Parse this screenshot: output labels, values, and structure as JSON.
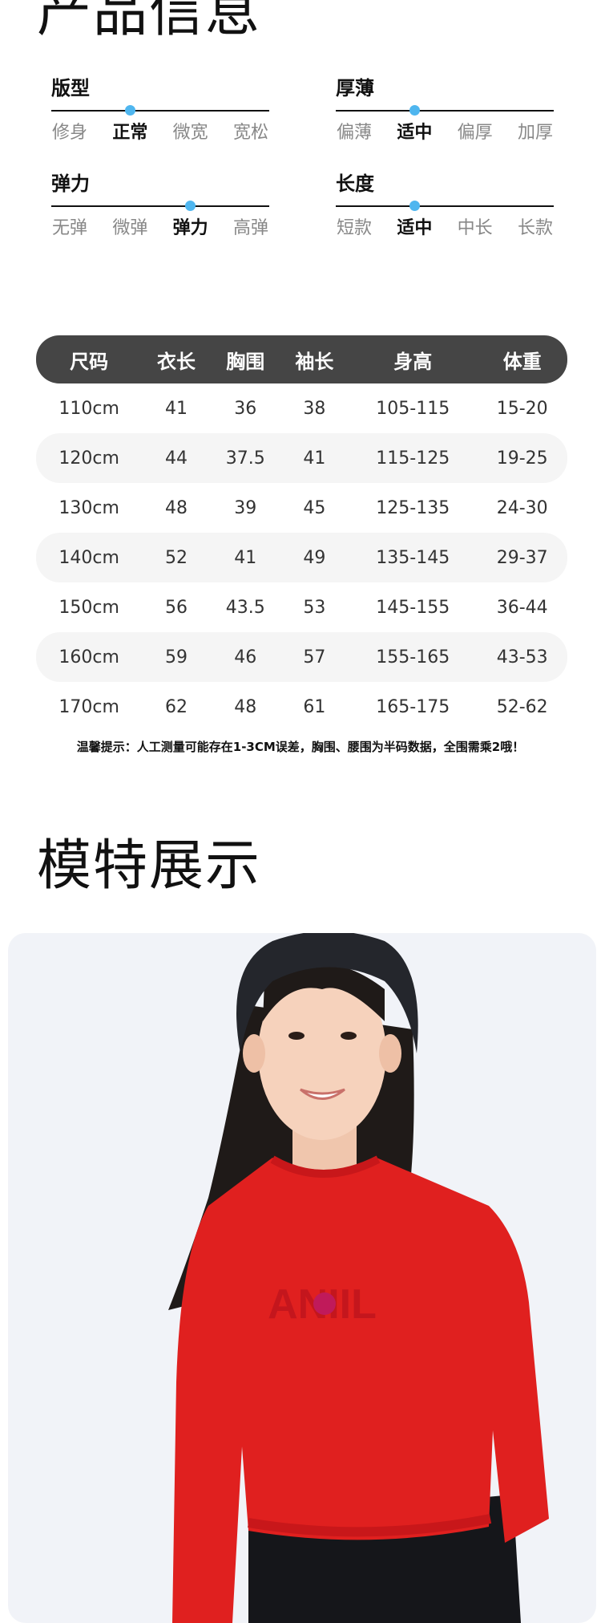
{
  "sections": {
    "product_info_title": "产品信息",
    "model_title": "模特展示"
  },
  "attributes": [
    {
      "name": "版型",
      "options": [
        "修身",
        "正常",
        "微宽",
        "宽松"
      ],
      "selected": 1
    },
    {
      "name": "厚薄",
      "options": [
        "偏薄",
        "适中",
        "偏厚",
        "加厚"
      ],
      "selected": 1
    },
    {
      "name": "弹力",
      "options": [
        "无弹",
        "微弹",
        "弹力",
        "高弹"
      ],
      "selected": 2
    },
    {
      "name": "长度",
      "options": [
        "短款",
        "适中",
        "中长",
        "长款"
      ],
      "selected": 1
    }
  ],
  "size_table": {
    "headers": [
      "尺码",
      "衣长",
      "胸围",
      "袖长",
      "身高",
      "体重"
    ],
    "rows": [
      [
        "110cm",
        "41",
        "36",
        "38",
        "105-115",
        "15-20"
      ],
      [
        "120cm",
        "44",
        "37.5",
        "41",
        "115-125",
        "19-25"
      ],
      [
        "130cm",
        "48",
        "39",
        "45",
        "125-135",
        "24-30"
      ],
      [
        "140cm",
        "52",
        "41",
        "49",
        "135-145",
        "29-37"
      ],
      [
        "150cm",
        "56",
        "43.5",
        "53",
        "145-155",
        "36-44"
      ],
      [
        "160cm",
        "59",
        "46",
        "57",
        "155-165",
        "43-53"
      ],
      [
        "170cm",
        "62",
        "48",
        "61",
        "165-175",
        "52-62"
      ]
    ]
  },
  "note": "温馨提示：人工测量可能存在1-3CM误差，胸围、腰围为半码数据，全围需乘2哦！",
  "photo": {
    "logo_text": "ANIIL"
  },
  "colors": {
    "accent_dot": "#4fb6ef",
    "header_bg": "#454545",
    "sweater": "#e0201f"
  }
}
